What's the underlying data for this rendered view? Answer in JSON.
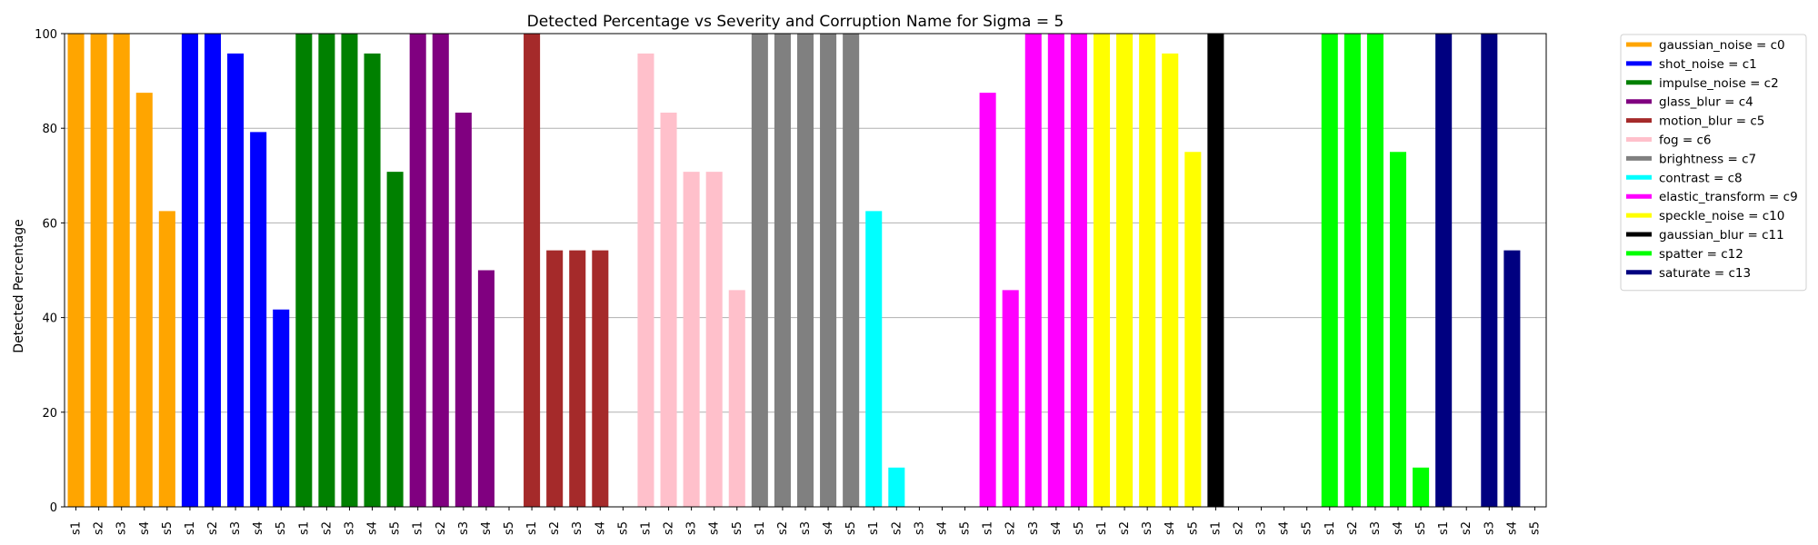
{
  "chart_data": {
    "type": "bar",
    "title": "Detected Percentage vs Severity and Corruption Name for Sigma = 5",
    "xlabel": "",
    "ylabel": "Detected Percentage",
    "ylim": [
      0,
      100
    ],
    "yticks": [
      0,
      20,
      40,
      60,
      80,
      100
    ],
    "grid": "y",
    "legend_position": "outside-right",
    "severity_labels": [
      "s1",
      "s2",
      "s3",
      "s4",
      "s5"
    ],
    "series": [
      {
        "name": "gaussian_noise = c0",
        "color": "#ffa500",
        "values": [
          100,
          100,
          100,
          87.5,
          62.5
        ]
      },
      {
        "name": "shot_noise = c1",
        "color": "#0000ff",
        "values": [
          100,
          100,
          95.8,
          79.2,
          41.7
        ]
      },
      {
        "name": "impulse_noise = c2",
        "color": "#008000",
        "values": [
          100,
          100,
          100,
          95.8,
          70.8
        ]
      },
      {
        "name": "glass_blur = c4",
        "color": "#800080",
        "values": [
          100,
          100,
          83.3,
          50,
          0
        ]
      },
      {
        "name": "motion_blur = c5",
        "color": "#a52a2a",
        "values": [
          100,
          54.2,
          54.2,
          54.2,
          0
        ]
      },
      {
        "name": "fog = c6",
        "color": "#ffc0cb",
        "values": [
          95.8,
          83.3,
          70.8,
          70.8,
          45.8
        ]
      },
      {
        "name": "brightness = c7",
        "color": "#808080",
        "values": [
          100,
          100,
          100,
          100,
          100
        ]
      },
      {
        "name": "contrast = c8",
        "color": "#00ffff",
        "values": [
          62.5,
          8.3,
          0,
          0,
          0
        ]
      },
      {
        "name": "elastic_transform = c9",
        "color": "#ff00ff",
        "values": [
          87.5,
          45.8,
          100,
          100,
          100
        ]
      },
      {
        "name": "speckle_noise = c10",
        "color": "#ffff00",
        "values": [
          100,
          100,
          100,
          95.8,
          75
        ]
      },
      {
        "name": "gaussian_blur = c11",
        "color": "#000000",
        "values": [
          100,
          0,
          0,
          0,
          0
        ]
      },
      {
        "name": "spatter = c12",
        "color": "#00ff00",
        "values": [
          100,
          100,
          100,
          75,
          8.3
        ]
      },
      {
        "name": "saturate = c13",
        "color": "#000080",
        "values": [
          100,
          0,
          100,
          54.2,
          0
        ]
      }
    ]
  }
}
